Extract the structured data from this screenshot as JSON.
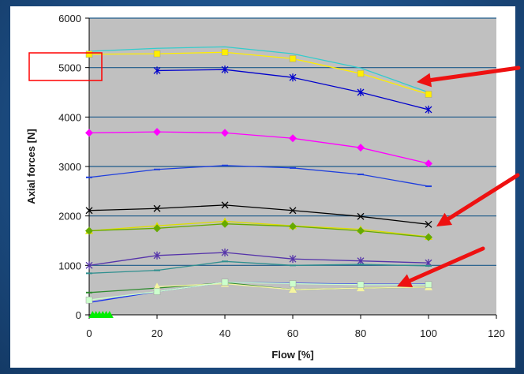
{
  "chart_data": {
    "type": "line",
    "title": "",
    "xlabel": "Flow [%]",
    "ylabel": "Axial forces [N]",
    "xlim": [
      0,
      120
    ],
    "ylim": [
      0,
      6000
    ],
    "xticks": [
      0,
      20,
      40,
      60,
      80,
      100,
      120
    ],
    "yticks": [
      0,
      1000,
      2000,
      3000,
      4000,
      5000,
      6000
    ],
    "grid": "horizontal",
    "legend": "none",
    "plot_background": "#c0c0c0",
    "series": [
      {
        "color": "#33cccc",
        "marker": "none",
        "x": [
          0,
          20,
          40,
          60,
          80,
          100
        ],
        "y": [
          5330,
          5390,
          5420,
          5280,
          4990,
          4500
        ]
      },
      {
        "color": "#ffee00",
        "marker": "square",
        "x": [
          0,
          20,
          40,
          60,
          80,
          100
        ],
        "y": [
          5270,
          5280,
          5310,
          5180,
          4880,
          4460
        ]
      },
      {
        "color": "#0000cc",
        "marker": "star",
        "x": [
          20,
          40,
          60,
          80,
          100
        ],
        "y": [
          4940,
          4960,
          4800,
          4500,
          4150
        ]
      },
      {
        "color": "#ff00ff",
        "marker": "diamond",
        "x": [
          0,
          20,
          40,
          60,
          80,
          100
        ],
        "y": [
          3680,
          3700,
          3680,
          3570,
          3380,
          3060
        ]
      },
      {
        "color": "#1f3fdd",
        "marker": "dash",
        "x": [
          0,
          20,
          40,
          60,
          80,
          100
        ],
        "y": [
          2780,
          2940,
          3020,
          2970,
          2840,
          2600
        ]
      },
      {
        "color": "#000000",
        "marker": "x",
        "x": [
          0,
          20,
          40,
          60,
          80,
          100
        ],
        "y": [
          2110,
          2150,
          2220,
          2110,
          1990,
          1830
        ]
      },
      {
        "color": "#dddd00",
        "marker": "triangle",
        "x": [
          0,
          20,
          40,
          60,
          80,
          100
        ],
        "y": [
          1700,
          1800,
          1890,
          1800,
          1730,
          1580
        ]
      },
      {
        "color": "#66aa00",
        "marker": "diamond",
        "x": [
          0,
          20,
          40,
          60,
          80,
          100
        ],
        "y": [
          1700,
          1750,
          1840,
          1790,
          1700,
          1570
        ]
      },
      {
        "color": "#5533aa",
        "marker": "star",
        "x": [
          0,
          20,
          40,
          60,
          80,
          100
        ],
        "y": [
          1000,
          1200,
          1260,
          1130,
          1090,
          1050
        ]
      },
      {
        "color": "#2f8f8f",
        "marker": "dash",
        "x": [
          0,
          20,
          40,
          60,
          80,
          100
        ],
        "y": [
          840,
          900,
          1080,
          1000,
          1020,
          990
        ]
      },
      {
        "color": "#1a33ee",
        "marker": "dash",
        "x": [
          0,
          20,
          40,
          60,
          80,
          100
        ],
        "y": [
          250,
          470,
          660,
          640,
          620,
          620
        ]
      },
      {
        "color": "#2e8b2e",
        "marker": "dash",
        "x": [
          0,
          20,
          40,
          60,
          80,
          100
        ],
        "y": [
          450,
          540,
          650,
          510,
          540,
          560
        ]
      },
      {
        "color": "#f5f5a0",
        "marker": "triangle",
        "x": [
          20,
          40,
          60,
          80,
          100
        ],
        "y": [
          570,
          630,
          510,
          540,
          560
        ]
      },
      {
        "color": "#ccffcc",
        "marker": "square",
        "x": [
          0,
          20,
          40,
          60,
          80,
          100
        ],
        "y": [
          300,
          470,
          660,
          630,
          610,
          610
        ]
      },
      {
        "color": "#00ee00",
        "marker": "triangle",
        "x": [
          1,
          2,
          3,
          4,
          5,
          6
        ],
        "y": [
          0,
          0,
          0,
          0,
          0,
          0
        ]
      }
    ],
    "annotations": {
      "highlight_box_color": "#ff0000",
      "arrow_color": "#ee1111"
    }
  }
}
